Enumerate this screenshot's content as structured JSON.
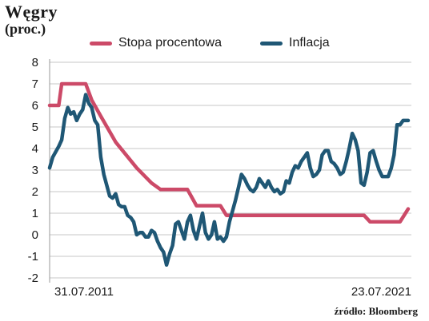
{
  "title": "Węgry",
  "subtitle": "(proc.)",
  "source": "źródło: Bloomberg",
  "colors": {
    "rate": "#cc4a68",
    "inflation": "#1f5775",
    "grid": "#c7c7c7"
  },
  "chart_data": {
    "type": "line",
    "ylim": [
      -2,
      8
    ],
    "yticks": [
      8,
      7,
      6,
      5,
      4,
      3,
      2,
      1,
      0,
      -1,
      -2
    ],
    "xlim": [
      "2011-07-31",
      "2021-07-23"
    ],
    "x_labels": [
      "31.07.2011",
      "23.07.2021"
    ],
    "legend": "top",
    "series": [
      {
        "name": "Stopa procentowa",
        "color": "#cc4a68",
        "points": [
          [
            "2011-07-31",
            6.0
          ],
          [
            "2011-11-01",
            6.0
          ],
          [
            "2011-12-01",
            7.0
          ],
          [
            "2012-08-01",
            7.0
          ],
          [
            "2012-10-01",
            6.25
          ],
          [
            "2013-01-01",
            5.5
          ],
          [
            "2013-06-01",
            4.3
          ],
          [
            "2014-01-01",
            3.1
          ],
          [
            "2014-06-01",
            2.4
          ],
          [
            "2014-09-01",
            2.1
          ],
          [
            "2015-06-01",
            2.1
          ],
          [
            "2015-09-01",
            1.35
          ],
          [
            "2016-05-01",
            1.35
          ],
          [
            "2016-07-01",
            0.9
          ],
          [
            "2020-05-01",
            0.9
          ],
          [
            "2020-07-01",
            0.6
          ],
          [
            "2021-05-01",
            0.6
          ],
          [
            "2021-07-23",
            1.2
          ]
        ]
      },
      {
        "name": "Inflacja",
        "color": "#1f5775",
        "points": [
          [
            "2011-07-31",
            3.1
          ],
          [
            "2011-09-01",
            3.6
          ],
          [
            "2011-11-01",
            4.1
          ],
          [
            "2011-12-01",
            4.4
          ],
          [
            "2012-01-01",
            5.4
          ],
          [
            "2012-02-01",
            5.9
          ],
          [
            "2012-03-01",
            5.6
          ],
          [
            "2012-04-01",
            5.7
          ],
          [
            "2012-05-01",
            5.3
          ],
          [
            "2012-06-01",
            5.6
          ],
          [
            "2012-07-01",
            5.8
          ],
          [
            "2012-08-01",
            6.5
          ],
          [
            "2012-09-01",
            6.1
          ],
          [
            "2012-10-01",
            5.9
          ],
          [
            "2012-11-01",
            5.3
          ],
          [
            "2012-12-01",
            5.1
          ],
          [
            "2013-01-01",
            3.6
          ],
          [
            "2013-02-01",
            2.8
          ],
          [
            "2013-04-01",
            1.8
          ],
          [
            "2013-05-01",
            1.7
          ],
          [
            "2013-06-01",
            1.9
          ],
          [
            "2013-07-01",
            1.4
          ],
          [
            "2013-08-01",
            1.3
          ],
          [
            "2013-09-01",
            1.3
          ],
          [
            "2013-10-01",
            0.9
          ],
          [
            "2013-11-01",
            0.8
          ],
          [
            "2013-12-01",
            0.6
          ],
          [
            "2014-01-01",
            0.0
          ],
          [
            "2014-02-01",
            0.1
          ],
          [
            "2014-03-01",
            0.1
          ],
          [
            "2014-04-01",
            -0.1
          ],
          [
            "2014-05-01",
            -0.1
          ],
          [
            "2014-06-01",
            0.2
          ],
          [
            "2014-07-01",
            0.1
          ],
          [
            "2014-08-01",
            -0.3
          ],
          [
            "2014-09-01",
            -0.6
          ],
          [
            "2014-10-01",
            -0.8
          ],
          [
            "2014-11-01",
            -1.4
          ],
          [
            "2014-12-01",
            -0.9
          ],
          [
            "2015-01-01",
            -0.5
          ],
          [
            "2015-02-01",
            0.5
          ],
          [
            "2015-03-01",
            0.6
          ],
          [
            "2015-04-01",
            0.2
          ],
          [
            "2015-05-01",
            -0.2
          ],
          [
            "2015-06-01",
            0.6
          ],
          [
            "2015-07-01",
            0.9
          ],
          [
            "2015-08-01",
            0.2
          ],
          [
            "2015-09-01",
            -0.2
          ],
          [
            "2015-10-01",
            0.4
          ],
          [
            "2015-11-01",
            1.0
          ],
          [
            "2015-12-01",
            0.1
          ],
          [
            "2016-01-01",
            -0.2
          ],
          [
            "2016-02-01",
            0.0
          ],
          [
            "2016-03-01",
            0.6
          ],
          [
            "2016-04-01",
            -0.2
          ],
          [
            "2016-05-01",
            -0.1
          ],
          [
            "2016-06-01",
            -0.3
          ],
          [
            "2016-07-01",
            -0.1
          ],
          [
            "2016-08-01",
            0.6
          ],
          [
            "2016-09-01",
            1.1
          ],
          [
            "2016-10-01",
            1.6
          ],
          [
            "2016-11-01",
            2.2
          ],
          [
            "2016-12-01",
            2.8
          ],
          [
            "2017-01-01",
            2.6
          ],
          [
            "2017-02-01",
            2.3
          ],
          [
            "2017-03-01",
            2.1
          ],
          [
            "2017-04-01",
            2.0
          ],
          [
            "2017-05-01",
            2.2
          ],
          [
            "2017-06-01",
            2.6
          ],
          [
            "2017-07-01",
            2.4
          ],
          [
            "2017-08-01",
            2.2
          ],
          [
            "2017-09-01",
            2.5
          ],
          [
            "2017-10-01",
            2.2
          ],
          [
            "2017-11-01",
            2.0
          ],
          [
            "2017-12-01",
            2.1
          ],
          [
            "2018-01-01",
            1.9
          ],
          [
            "2018-02-01",
            2.0
          ],
          [
            "2018-03-01",
            2.5
          ],
          [
            "2018-04-01",
            2.4
          ],
          [
            "2018-05-01",
            2.9
          ],
          [
            "2018-06-01",
            3.2
          ],
          [
            "2018-07-01",
            3.1
          ],
          [
            "2018-08-01",
            3.4
          ],
          [
            "2018-09-01",
            3.6
          ],
          [
            "2018-10-01",
            3.8
          ],
          [
            "2018-11-01",
            3.1
          ],
          [
            "2018-12-01",
            2.7
          ],
          [
            "2019-01-01",
            2.8
          ],
          [
            "2019-02-01",
            3.0
          ],
          [
            "2019-03-01",
            3.7
          ],
          [
            "2019-04-01",
            3.9
          ],
          [
            "2019-05-01",
            3.9
          ],
          [
            "2019-06-01",
            3.4
          ],
          [
            "2019-07-01",
            3.3
          ],
          [
            "2019-08-01",
            3.1
          ],
          [
            "2019-09-01",
            2.8
          ],
          [
            "2019-10-01",
            2.9
          ],
          [
            "2019-11-01",
            3.4
          ],
          [
            "2019-12-01",
            4.0
          ],
          [
            "2020-01-01",
            4.7
          ],
          [
            "2020-02-01",
            4.4
          ],
          [
            "2020-03-01",
            3.9
          ],
          [
            "2020-04-01",
            2.4
          ],
          [
            "2020-05-01",
            2.3
          ],
          [
            "2020-06-01",
            2.9
          ],
          [
            "2020-07-01",
            3.8
          ],
          [
            "2020-08-01",
            3.9
          ],
          [
            "2020-09-01",
            3.4
          ],
          [
            "2020-10-01",
            3.0
          ],
          [
            "2020-11-01",
            2.7
          ],
          [
            "2020-12-01",
            2.7
          ],
          [
            "2021-01-01",
            2.7
          ],
          [
            "2021-02-01",
            3.1
          ],
          [
            "2021-03-01",
            3.7
          ],
          [
            "2021-04-01",
            5.1
          ],
          [
            "2021-05-01",
            5.1
          ],
          [
            "2021-06-01",
            5.3
          ],
          [
            "2021-07-23",
            5.3
          ]
        ]
      }
    ]
  }
}
